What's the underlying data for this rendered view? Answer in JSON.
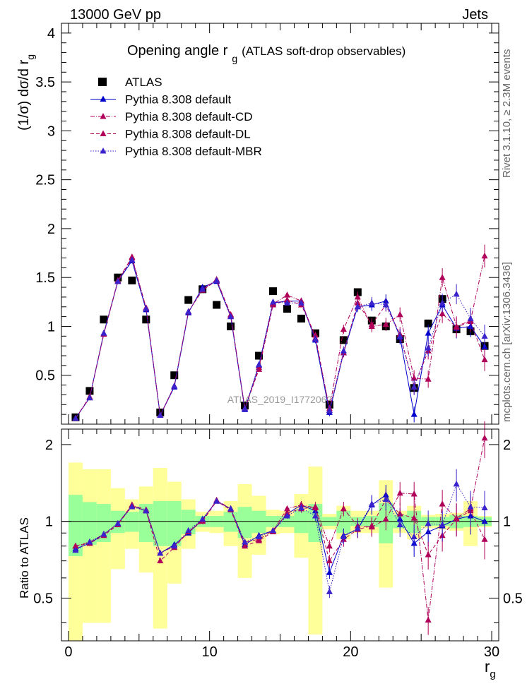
{
  "header": {
    "energy": "13000 GeV pp",
    "category": "Jets"
  },
  "side": {
    "rivet": "Rivet 3.1.10, ≥ 2.3M events",
    "site": "mcplots.cern.ch [arXiv:1306.3436]"
  },
  "chart_data": [
    {
      "type": "scatter",
      "title": "Opening angle r_g (ATLAS soft-drop observables)",
      "title_main": "Opening angle r",
      "title_sub": "g",
      "title_tail": "(ATLAS soft-drop observables)",
      "ylabel": "(1/σ) dσ/d r_g",
      "ylabel_main": "(1/σ) dσ/d r",
      "ylabel_sub": "g",
      "watermark": "ATLAS_2019_I1772062",
      "xlim": [
        -0.5,
        30.5
      ],
      "ylim": [
        0,
        4.1
      ],
      "yticks": [
        0.5,
        1,
        1.5,
        2,
        2.5,
        3,
        3.5,
        4
      ],
      "ytick_labels": [
        "0.5",
        "1",
        "1.5",
        "2",
        "2.5",
        "3",
        "3.5",
        "4"
      ],
      "legend_position": "top-left",
      "x": [
        0.5,
        1.5,
        2.5,
        3.5,
        4.5,
        5.5,
        6.5,
        7.5,
        8.5,
        9.5,
        10.5,
        11.5,
        12.5,
        13.5,
        14.5,
        15.5,
        16.5,
        17.5,
        18.5,
        19.5,
        20.5,
        21.5,
        22.5,
        23.5,
        24.5,
        25.5,
        26.5,
        27.5,
        28.5,
        29.5
      ],
      "series": [
        {
          "name": "ATLAS",
          "marker": "square",
          "color": "#000000",
          "values": [
            0.07,
            0.34,
            1.07,
            1.5,
            1.47,
            1.07,
            0.12,
            0.5,
            1.27,
            1.38,
            1.22,
            1.0,
            0.19,
            0.7,
            1.36,
            1.18,
            1.08,
            0.93,
            0.2,
            0.86,
            1.35,
            1.06,
            1.0,
            0.87,
            0.37,
            1.03,
            1.28,
            0.97,
            0.95,
            0.8
          ]
        },
        {
          "name": "Pythia 8.308 default",
          "marker": "triangle",
          "line": "solid",
          "color": "#0000cc",
          "values": [
            0.06,
            0.27,
            0.93,
            1.46,
            1.67,
            1.17,
            0.09,
            0.38,
            1.14,
            1.4,
            1.46,
            1.1,
            0.15,
            0.6,
            1.24,
            1.26,
            1.26,
            0.86,
            0.12,
            0.73,
            1.2,
            1.22,
            1.26,
            0.89,
            0.1,
            0.93,
            1.22,
            0.98,
            1.0,
            0.79
          ]
        },
        {
          "name": "Pythia 8.308 default-CD",
          "marker": "triangle",
          "line": "dashdot",
          "color": "#b0005a",
          "values": [
            0.06,
            0.28,
            0.92,
            1.47,
            1.71,
            1.19,
            0.09,
            0.39,
            1.15,
            1.38,
            1.48,
            1.12,
            0.16,
            0.58,
            1.23,
            1.32,
            1.26,
            0.88,
            0.16,
            0.97,
            1.3,
            1.0,
            1.02,
            1.12,
            0.47,
            0.46,
            1.5,
            1.0,
            1.06,
            1.72
          ]
        },
        {
          "name": "Pythia 8.308 default-DL",
          "marker": "triangle",
          "line": "dashed",
          "color": "#b0005a",
          "values": [
            0.06,
            0.27,
            0.92,
            1.46,
            1.7,
            1.18,
            0.09,
            0.39,
            1.15,
            1.37,
            1.47,
            1.11,
            0.16,
            0.56,
            1.22,
            1.27,
            1.22,
            0.91,
            0.14,
            0.73,
            1.24,
            1.02,
            1.22,
            0.92,
            0.38,
            0.75,
            1.13,
            0.99,
            1.05,
            0.66
          ]
        },
        {
          "name": "Pythia 8.308 default-MBR",
          "marker": "triangle",
          "line": "dotted",
          "color": "#3a22cc",
          "values": [
            0.06,
            0.27,
            0.93,
            1.46,
            1.68,
            1.18,
            0.09,
            0.39,
            1.15,
            1.38,
            1.47,
            1.1,
            0.16,
            0.61,
            1.25,
            1.24,
            1.24,
            0.87,
            0.14,
            0.75,
            1.2,
            1.24,
            1.22,
            0.9,
            0.38,
            0.78,
            1.24,
            1.33,
            1.08,
            0.9
          ]
        }
      ]
    },
    {
      "type": "scatter",
      "ylabel": "Ratio to ATLAS",
      "xlabel": "r_g",
      "xlabel_main": "r",
      "xlabel_sub": "g",
      "xlim": [
        -0.5,
        30.5
      ],
      "ylim": [
        0.34,
        2.3
      ],
      "xticks": [
        0,
        10,
        20,
        30
      ],
      "xtick_labels": [
        "0",
        "10",
        "20",
        "30"
      ],
      "yticks": [
        0.5,
        1,
        2
      ],
      "ytick_labels": [
        "0.5",
        "1",
        "2"
      ],
      "band_inner_halfwidth": [
        0.27,
        0.19,
        0.17,
        0.1,
        0.09,
        0.17,
        0.2,
        0.2,
        0.11,
        0.05,
        0.05,
        0.09,
        0.14,
        0.1,
        0.05,
        0.05,
        0.1,
        0.17,
        0.04,
        0.1,
        0.04,
        0.05,
        0.18,
        0.06,
        0.1,
        0.04,
        0.04,
        0.06,
        0.05,
        0.04
      ],
      "band_outer_halfwidth": [
        0.7,
        0.6,
        0.6,
        0.35,
        0.22,
        0.37,
        0.62,
        0.43,
        0.22,
        0.09,
        0.1,
        0.2,
        0.4,
        0.26,
        0.11,
        0.1,
        0.28,
        0.64,
        0.07,
        0.15,
        0.1,
        0.1,
        0.45,
        0.1,
        0.15,
        0.06,
        0.07,
        0.08,
        0.2,
        0.05
      ],
      "series": [
        {
          "name": "Pythia 8.308 default",
          "color": "#0000cc",
          "line": "solid",
          "values": [
            0.78,
            0.82,
            0.89,
            0.98,
            1.15,
            1.1,
            0.75,
            0.81,
            0.9,
            1.02,
            1.2,
            1.12,
            0.81,
            0.88,
            0.92,
            1.07,
            1.16,
            1.1,
            0.63,
            0.88,
            0.93,
            1.16,
            1.27,
            1.02,
            0.82,
            0.91,
            0.96,
            1.02,
            1.05,
            1.0
          ]
        },
        {
          "name": "Pythia 8.308 default-CD",
          "color": "#b0005a",
          "line": "dashdot",
          "values": [
            0.8,
            0.83,
            0.89,
            0.98,
            1.16,
            1.11,
            0.75,
            0.8,
            0.91,
            1.01,
            1.21,
            1.12,
            0.83,
            0.85,
            0.92,
            1.12,
            1.16,
            1.13,
            0.8,
            1.12,
            0.96,
            0.95,
            1.02,
            1.29,
            1.28,
            0.41,
            1.17,
            1.03,
            1.12,
            2.12
          ]
        },
        {
          "name": "Pythia 8.308 default-DL",
          "color": "#b0005a",
          "line": "dashed",
          "values": [
            0.8,
            0.82,
            0.88,
            0.97,
            1.15,
            1.1,
            0.7,
            0.79,
            0.91,
            1.0,
            1.2,
            1.11,
            0.8,
            0.84,
            0.91,
            1.08,
            1.12,
            1.14,
            0.7,
            0.85,
            0.93,
            0.96,
            1.22,
            1.07,
            1.03,
            0.74,
            0.88,
            1.02,
            1.1,
            0.85
          ]
        },
        {
          "name": "Pythia 8.308 default-MBR",
          "color": "#3a22cc",
          "line": "dotted",
          "values": [
            0.77,
            0.83,
            0.89,
            0.98,
            1.14,
            1.1,
            0.75,
            0.8,
            0.92,
            1.02,
            1.2,
            1.12,
            0.83,
            0.87,
            0.92,
            1.05,
            1.13,
            1.05,
            0.53,
            0.87,
            0.94,
            1.17,
            1.22,
            0.97,
            0.87,
            0.98,
            0.97,
            1.4,
            1.14,
            1.13
          ]
        }
      ]
    }
  ]
}
